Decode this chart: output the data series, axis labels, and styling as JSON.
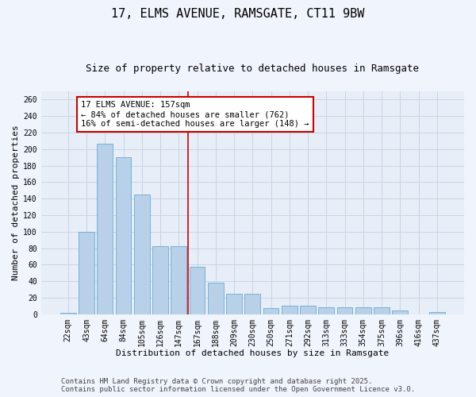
{
  "title1": "17, ELMS AVENUE, RAMSGATE, CT11 9BW",
  "title2": "Size of property relative to detached houses in Ramsgate",
  "xlabel": "Distribution of detached houses by size in Ramsgate",
  "ylabel": "Number of detached properties",
  "categories": [
    "22sqm",
    "43sqm",
    "64sqm",
    "84sqm",
    "105sqm",
    "126sqm",
    "147sqm",
    "167sqm",
    "188sqm",
    "209sqm",
    "230sqm",
    "250sqm",
    "271sqm",
    "292sqm",
    "313sqm",
    "333sqm",
    "354sqm",
    "375sqm",
    "396sqm",
    "416sqm",
    "437sqm"
  ],
  "values": [
    2,
    100,
    207,
    190,
    145,
    82,
    82,
    57,
    38,
    25,
    25,
    7,
    10,
    10,
    8,
    8,
    8,
    8,
    5,
    0,
    3
  ],
  "bar_color": "#b8d0e8",
  "bar_edge_color": "#6aaad4",
  "annotation_text": "17 ELMS AVENUE: 157sqm\n← 84% of detached houses are smaller (762)\n16% of semi-detached houses are larger (148) →",
  "annotation_box_color": "#ffffff",
  "annotation_box_edge": "#cc0000",
  "grid_color": "#c8d4e4",
  "background_color": "#e8eef8",
  "fig_background": "#f0f4fc",
  "ylim": [
    0,
    270
  ],
  "yticks": [
    0,
    20,
    40,
    60,
    80,
    100,
    120,
    140,
    160,
    180,
    200,
    220,
    240,
    260
  ],
  "footer1": "Contains HM Land Registry data © Crown copyright and database right 2025.",
  "footer2": "Contains public sector information licensed under the Open Government Licence v3.0.",
  "title1_fontsize": 11,
  "title2_fontsize": 9,
  "xlabel_fontsize": 8,
  "ylabel_fontsize": 8,
  "tick_fontsize": 7,
  "annotation_fontsize": 7.5,
  "footer_fontsize": 6.5
}
